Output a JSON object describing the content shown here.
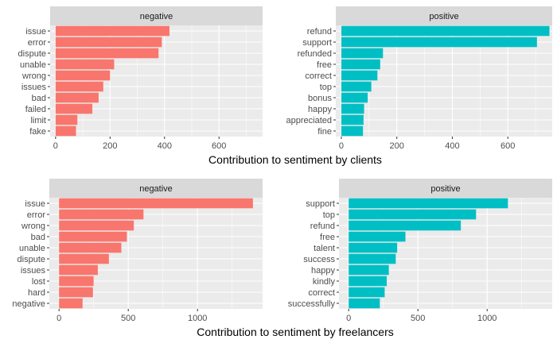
{
  "colors": {
    "negative": "#F8766D",
    "positive": "#00BFC4",
    "panel": "#EBEBEB",
    "strip": "#D9D9D9",
    "grid": "#FFFFFF",
    "text": "#4D4D4D"
  },
  "chart_data": [
    {
      "type": "bar",
      "orientation": "horizontal",
      "facet": "negative",
      "group": "clients",
      "categories": [
        "issue",
        "error",
        "dispute",
        "unable",
        "wrong",
        "issues",
        "bad",
        "failed",
        "limit",
        "fake"
      ],
      "values": [
        418,
        390,
        378,
        215,
        200,
        175,
        158,
        135,
        80,
        75
      ],
      "xlim": [
        -20,
        760
      ],
      "xticks": [
        0,
        200,
        400,
        600
      ],
      "grid": true
    },
    {
      "type": "bar",
      "orientation": "horizontal",
      "facet": "positive",
      "group": "clients",
      "categories": [
        "refund",
        "support",
        "refunded",
        "free",
        "correct",
        "top",
        "bonus",
        "happy",
        "appreciated",
        "fine"
      ],
      "values": [
        750,
        705,
        150,
        140,
        130,
        108,
        95,
        82,
        80,
        78
      ],
      "xlim": [
        -20,
        760
      ],
      "xticks": [
        0,
        200,
        400,
        600
      ],
      "grid": true
    },
    {
      "type": "bar",
      "orientation": "horizontal",
      "facet": "negative",
      "group": "freelancers",
      "categories": [
        "issue",
        "error",
        "wrong",
        "bad",
        "unable",
        "dispute",
        "issues",
        "lost",
        "hard",
        "negative"
      ],
      "values": [
        1400,
        610,
        540,
        490,
        450,
        360,
        280,
        250,
        245,
        170
      ],
      "xlim": [
        -70,
        1470
      ],
      "xticks": [
        0,
        500,
        1000
      ],
      "grid": true
    },
    {
      "type": "bar",
      "orientation": "horizontal",
      "facet": "positive",
      "group": "freelancers",
      "categories": [
        "support",
        "top",
        "refund",
        "free",
        "talent",
        "success",
        "happy",
        "kindly",
        "correct",
        "successfully"
      ],
      "values": [
        1150,
        920,
        810,
        410,
        350,
        340,
        290,
        275,
        260,
        225
      ],
      "xlim": [
        -70,
        1470
      ],
      "xticks": [
        0,
        500,
        1000
      ],
      "grid": true
    }
  ],
  "row_labels": [
    "Contribution to sentiment by clients",
    "Contribution to sentiment by freelancers"
  ]
}
